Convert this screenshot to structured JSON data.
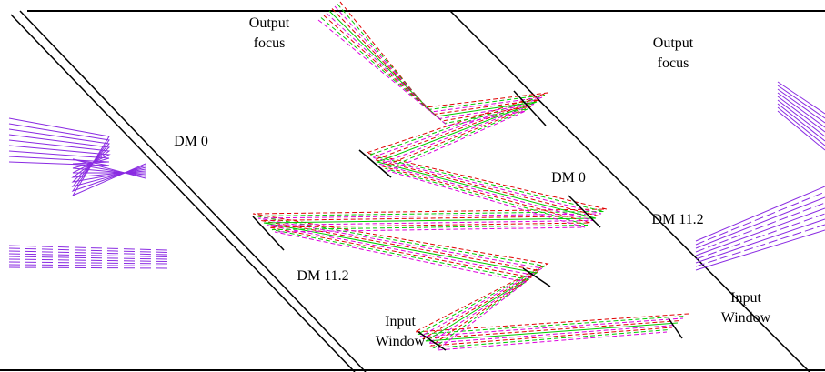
{
  "labels": [
    {
      "lines": [
        "Output",
        "focus"
      ]
    },
    {
      "lines": [
        "DM 0"
      ]
    },
    {
      "lines": [
        "DM 0"
      ]
    },
    {
      "lines": [
        "DM 11.2"
      ]
    },
    {
      "lines": [
        "Input",
        "Window"
      ]
    },
    {
      "lines": [
        "Output",
        "focus"
      ]
    },
    {
      "lines": [
        "DM 11.2"
      ]
    },
    {
      "lines": [
        "Input",
        "Window"
      ]
    }
  ]
}
